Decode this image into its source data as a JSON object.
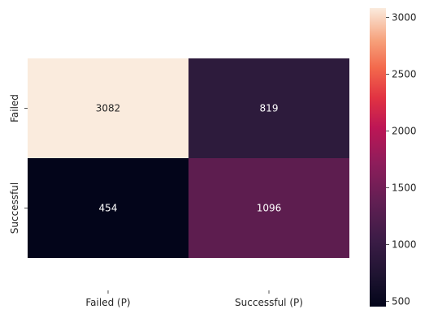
{
  "chart_data": {
    "type": "heatmap",
    "title": "",
    "xlabel": "",
    "ylabel": "",
    "x_categories": [
      "Failed (P)",
      "Successful (P)"
    ],
    "y_categories": [
      "Failed",
      "Successful"
    ],
    "values": [
      [
        3082,
        819
      ],
      [
        454,
        1096
      ]
    ],
    "cell_labels": [
      [
        "3082",
        "819"
      ],
      [
        "454",
        "1096"
      ]
    ],
    "colormap": "rocket",
    "colorbar": {
      "vmin": 454,
      "vmax": 3082,
      "ticks": [
        500,
        1000,
        1500,
        2000,
        2500,
        3000
      ],
      "tick_labels": [
        "500",
        "1000",
        "1500",
        "2000",
        "2500",
        "3000"
      ]
    },
    "cell_colors": [
      [
        "#faebdd",
        "#2d1b3c"
      ],
      [
        "#03051a",
        "#5d1d4f"
      ]
    ],
    "text_colors": [
      [
        "#262626",
        "#ffffff"
      ],
      [
        "#ffffff",
        "#ffffff"
      ]
    ]
  }
}
